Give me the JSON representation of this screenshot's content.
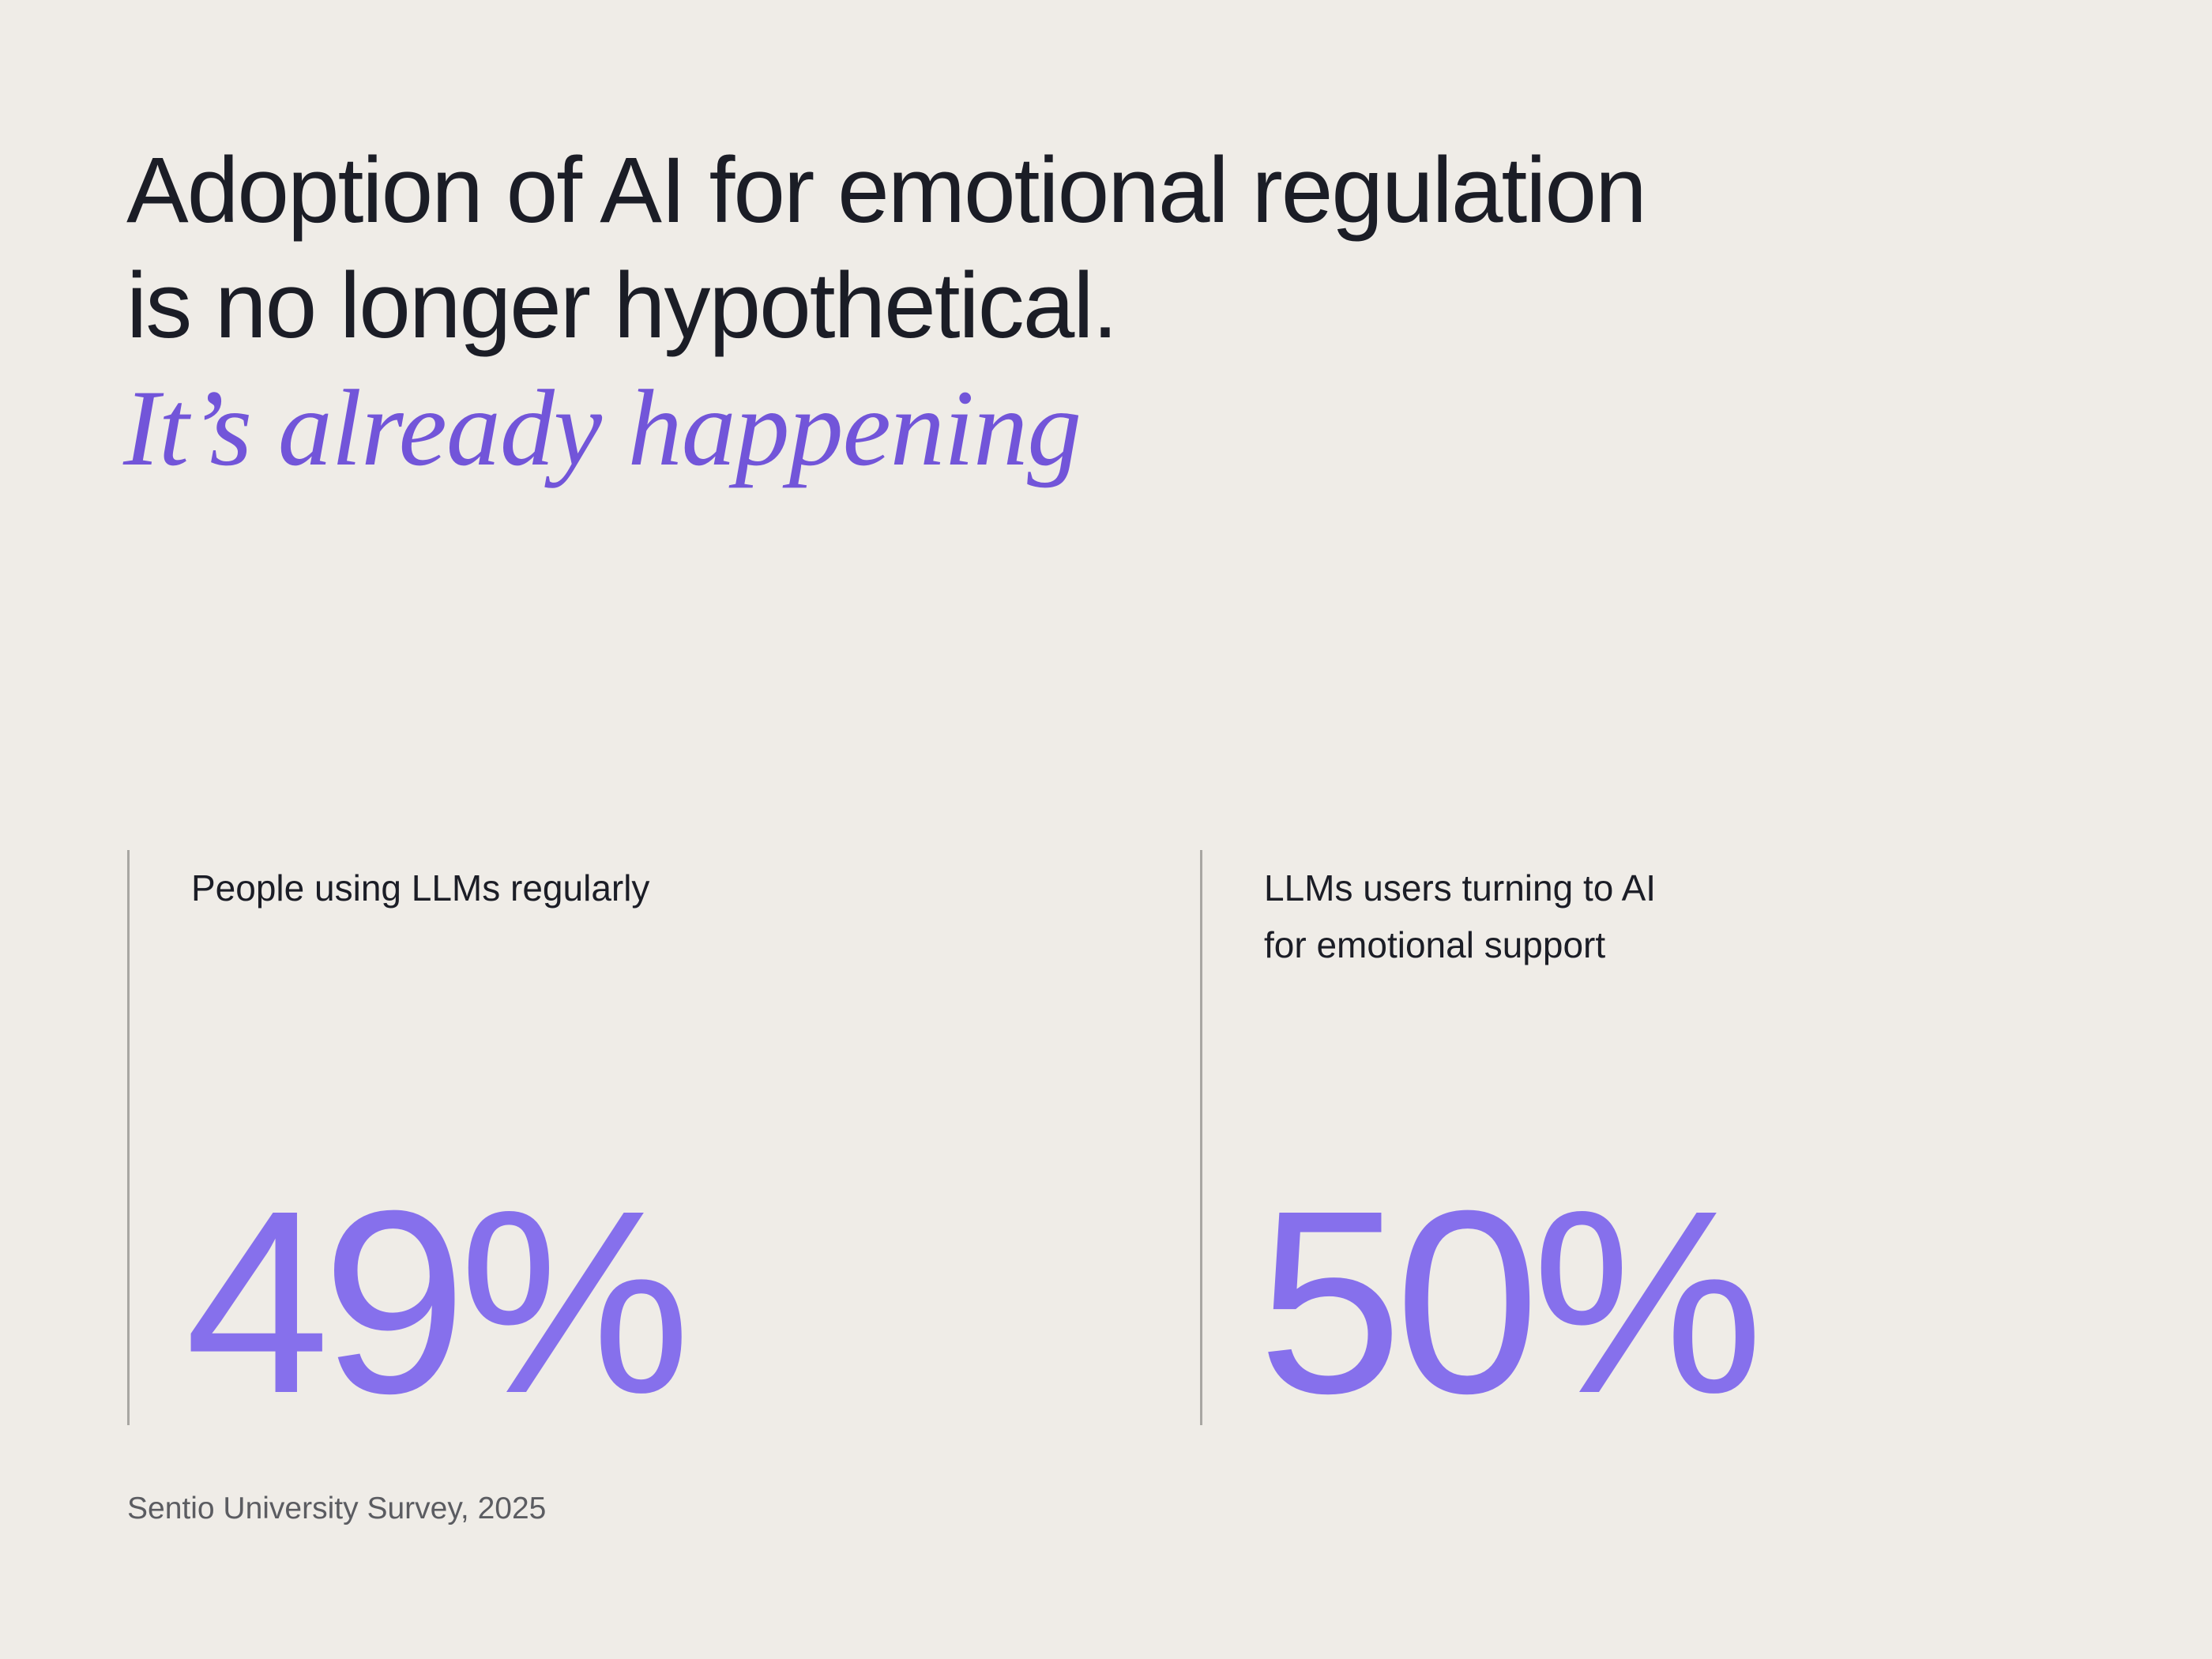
{
  "headline": {
    "line1": "Adoption of AI for emotional regulation",
    "line2": "is no longer hypothetical.",
    "tagline": "It’s already happening"
  },
  "stats": [
    {
      "label": "People using LLMs regularly",
      "value": "49%"
    },
    {
      "label": "LLMs users turning to AI\nfor emotional support",
      "value": "50%"
    }
  ],
  "source": "Sentio University Survey, 2025",
  "colors": {
    "background": "#efece7",
    "text": "#1b1d26",
    "accent": "#8670ec",
    "tagline": "#7255d9",
    "divider": "#a8a6a2"
  }
}
